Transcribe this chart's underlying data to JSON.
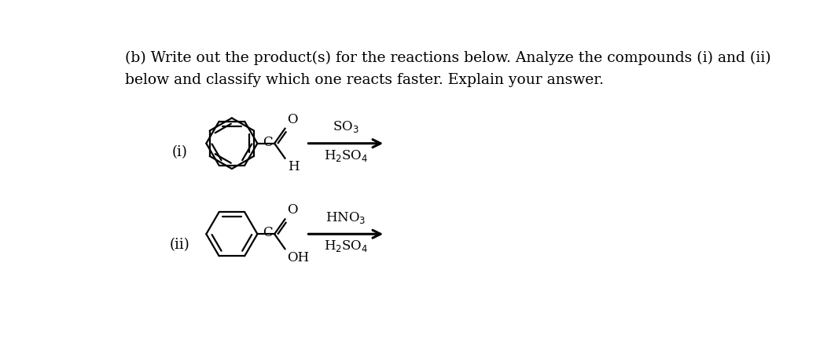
{
  "title_line1": "(b) Write out the product(s) for the reactions below. Analyze the compounds (i) and (ii)",
  "title_line2": "below and classify which one reacts faster. Explain your answer.",
  "label_i": "(i)",
  "label_ii": "(ii)",
  "reagent_i_top": "SO$_3$",
  "reagent_i_bot": "H$_2$SO$_4$",
  "reagent_ii_top": "HNO$_3$",
  "reagent_ii_bot": "H$_2$SO$_4$",
  "atom_H": "H",
  "atom_OH": "OH",
  "atom_O": "O",
  "atom_C": "C",
  "background": "#ffffff",
  "line_color": "#000000",
  "font_color": "#000000",
  "title_fontsize": 13.5,
  "label_fontsize": 13,
  "chem_fontsize": 12
}
